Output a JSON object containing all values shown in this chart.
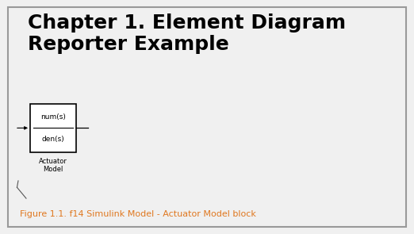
{
  "title_line1": "Chapter 1. Element Diagram",
  "title_line2": "Reporter Example",
  "title_fontsize": 18,
  "title_fontweight": "bold",
  "title_color": "#000000",
  "caption": "Figure 1.1. f14 Simulink Model - Actuator Model block",
  "caption_color": "#E07820",
  "caption_fontsize": 8,
  "block_label_top": "num(s)",
  "block_label_bottom": "den(s)",
  "block_sublabel1": "Actuator",
  "block_sublabel2": "Model",
  "background_color": "#f0f0f0",
  "inner_bg": "#ffffff",
  "border_color": "#bbbbbb"
}
